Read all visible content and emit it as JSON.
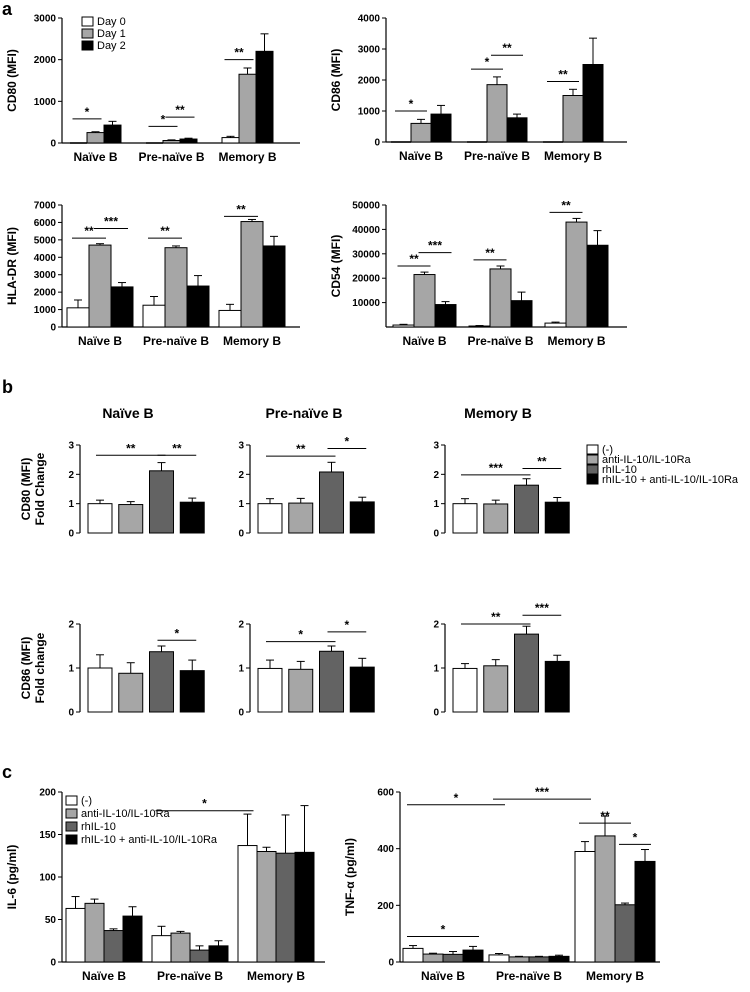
{
  "panels": [
    {
      "letter": "a"
    },
    {
      "letter": "b"
    },
    {
      "letter": "c"
    }
  ],
  "colors": {
    "white": "#ffffff",
    "lightgray": "#a6a6a6",
    "darkgray": "#636363",
    "black": "#000000"
  },
  "panel_a_legend": [
    "Day 0",
    "Day 1",
    "Day 2"
  ],
  "panel_b_legend": [
    "(-)",
    "anti-IL-10/IL-10Ra",
    "rhIL-10",
    "rhIL-10 + anti-IL-10/IL-10Ra"
  ],
  "panel_b_columns": [
    "Naïve B",
    "Pre-naïve B",
    "Memory B"
  ],
  "chart_data": [
    {
      "id": "a1",
      "type": "bar",
      "ylabel": "CD80 (MFI)",
      "ylim": [
        0,
        3000
      ],
      "yticks": [
        0,
        1000,
        2000,
        3000
      ],
      "categories": [
        "Naïve B",
        "Pre-naïve B",
        "Memory B"
      ],
      "series": [
        {
          "name": "Day 0",
          "values": [
            0,
            0,
            130
          ],
          "errors": [
            0,
            0,
            30
          ]
        },
        {
          "name": "Day 1",
          "values": [
            250,
            60,
            1650
          ],
          "errors": [
            20,
            15,
            150
          ]
        },
        {
          "name": "Day 2",
          "values": [
            430,
            95,
            2200
          ],
          "errors": [
            90,
            20,
            420
          ]
        }
      ],
      "significance": [
        {
          "label": "*",
          "cat": 0,
          "from": 0,
          "to": 1,
          "y": 580
        },
        {
          "label": "*",
          "cat": 1,
          "from": 0,
          "to": 1,
          "y": 400
        },
        {
          "label": "**",
          "cat": 1,
          "from": 1,
          "to": 2,
          "y": 620
        },
        {
          "label": "**",
          "cat": 2,
          "from": 0,
          "to": 1,
          "y": 2000
        }
      ]
    },
    {
      "id": "a2",
      "type": "bar",
      "ylabel": "CD86 (MFI)",
      "ylim": [
        0,
        4000
      ],
      "yticks": [
        0,
        1000,
        2000,
        3000,
        4000
      ],
      "categories": [
        "Naïve B",
        "Pre-naïve B",
        "Memory B"
      ],
      "series": [
        {
          "name": "Day 0",
          "values": [
            0,
            0,
            0
          ],
          "errors": [
            0,
            0,
            0
          ]
        },
        {
          "name": "Day 1",
          "values": [
            600,
            1850,
            1500
          ],
          "errors": [
            130,
            250,
            200
          ]
        },
        {
          "name": "Day 2",
          "values": [
            900,
            780,
            2500
          ],
          "errors": [
            280,
            120,
            850
          ]
        }
      ],
      "significance": [
        {
          "label": "*",
          "cat": 0,
          "from": 0,
          "to": 1,
          "y": 1000
        },
        {
          "label": "*",
          "cat": 1,
          "from": 0,
          "to": 1,
          "y": 2350
        },
        {
          "label": "**",
          "cat": 1,
          "from": 1,
          "to": 2,
          "y": 2800
        },
        {
          "label": "**",
          "cat": 2,
          "from": 0,
          "to": 1,
          "y": 1950
        }
      ]
    },
    {
      "id": "a3",
      "type": "bar",
      "ylabel": "HLA-DR (MFI)",
      "ylim": [
        0,
        7000
      ],
      "yticks": [
        0,
        1000,
        2000,
        3000,
        4000,
        5000,
        6000,
        7000
      ],
      "categories": [
        "Naïve B",
        "Pre-naïve B",
        "Memory B"
      ],
      "series": [
        {
          "name": "Day 0",
          "values": [
            1100,
            1250,
            950
          ],
          "errors": [
            450,
            500,
            350
          ]
        },
        {
          "name": "Day 1",
          "values": [
            4700,
            4550,
            6050
          ],
          "errors": [
            80,
            100,
            120
          ]
        },
        {
          "name": "Day 2",
          "values": [
            2300,
            2350,
            4650
          ],
          "errors": [
            250,
            600,
            550
          ]
        }
      ],
      "significance": [
        {
          "label": "**",
          "cat": 0,
          "from": 0,
          "to": 1,
          "y": 5100
        },
        {
          "label": "***",
          "cat": 0,
          "from": 1,
          "to": 2,
          "y": 5650
        },
        {
          "label": "**",
          "cat": 1,
          "from": 0,
          "to": 1,
          "y": 5100
        },
        {
          "label": "**",
          "cat": 2,
          "from": 0,
          "to": 1,
          "y": 6350
        }
      ]
    },
    {
      "id": "a4",
      "type": "bar",
      "ylabel": "CD54 (MFI)",
      "ylim": [
        0,
        50000
      ],
      "yticks": [
        10000,
        20000,
        30000,
        40000,
        50000
      ],
      "categories": [
        "Naïve  B",
        "Pre-naïve B",
        "Memory B"
      ],
      "series": [
        {
          "name": "Day 0",
          "values": [
            800,
            400,
            1600
          ],
          "errors": [
            300,
            200,
            400
          ]
        },
        {
          "name": "Day 1",
          "values": [
            21500,
            23800,
            43000
          ],
          "errors": [
            1000,
            1200,
            1500
          ]
        },
        {
          "name": "Day 2",
          "values": [
            9200,
            10800,
            33500
          ],
          "errors": [
            1200,
            3500,
            6000
          ]
        }
      ],
      "significance": [
        {
          "label": "**",
          "cat": 0,
          "from": 0,
          "to": 1,
          "y": 25000
        },
        {
          "label": "***",
          "cat": 0,
          "from": 1,
          "to": 2,
          "y": 30500
        },
        {
          "label": "**",
          "cat": 1,
          "from": 0,
          "to": 1,
          "y": 27500
        },
        {
          "label": "**",
          "cat": 2,
          "from": 0,
          "to": 1,
          "y": 47000
        }
      ]
    },
    {
      "id": "b1",
      "type": "bar",
      "ylabel": [
        "CD80 (MFI)",
        "Fold Change"
      ],
      "ylim": [
        0,
        3
      ],
      "yticks": [
        0,
        1,
        2,
        3
      ],
      "values": [
        1.0,
        0.97,
        2.12,
        1.05
      ],
      "errors": [
        0.12,
        0.1,
        0.28,
        0.14
      ],
      "significance": [
        {
          "label": "**",
          "from": 0,
          "to": 2,
          "y": 2.65
        },
        {
          "label": "**",
          "from": 2,
          "to": 3,
          "y": 2.65
        }
      ]
    },
    {
      "id": "b2",
      "type": "bar",
      "ylabel": "",
      "ylim": [
        0,
        3
      ],
      "yticks": [
        0,
        1,
        2,
        3
      ],
      "values": [
        1.0,
        1.02,
        2.08,
        1.06
      ],
      "errors": [
        0.17,
        0.16,
        0.33,
        0.16
      ],
      "significance": [
        {
          "label": "**",
          "from": 0,
          "to": 2,
          "y": 2.62
        },
        {
          "label": "*",
          "from": 2,
          "to": 3,
          "y": 2.88
        }
      ]
    },
    {
      "id": "b3",
      "type": "bar",
      "ylabel": "",
      "ylim": [
        0,
        3
      ],
      "yticks": [
        0,
        1,
        2,
        3
      ],
      "values": [
        1.0,
        0.99,
        1.63,
        1.05
      ],
      "errors": [
        0.17,
        0.13,
        0.22,
        0.16
      ],
      "significance": [
        {
          "label": "***",
          "from": 0,
          "to": 2,
          "y": 1.98
        },
        {
          "label": "**",
          "from": 2,
          "to": 3,
          "y": 2.2
        }
      ]
    },
    {
      "id": "b4",
      "type": "bar",
      "ylabel": [
        "CD86 (MFI)",
        "Fold change"
      ],
      "ylim": [
        0,
        2
      ],
      "yticks": [
        0,
        1,
        2
      ],
      "values": [
        1.0,
        0.88,
        1.37,
        0.94
      ],
      "errors": [
        0.3,
        0.24,
        0.13,
        0.24
      ],
      "significance": [
        {
          "label": "*",
          "from": 2,
          "to": 3,
          "y": 1.63
        }
      ]
    },
    {
      "id": "b5",
      "type": "bar",
      "ylabel": "",
      "ylim": [
        0,
        2
      ],
      "yticks": [
        0,
        1,
        2
      ],
      "values": [
        0.99,
        0.97,
        1.38,
        1.02
      ],
      "errors": [
        0.19,
        0.18,
        0.12,
        0.2
      ],
      "significance": [
        {
          "label": "*",
          "from": 0,
          "to": 2,
          "y": 1.6
        },
        {
          "label": "*",
          "from": 2,
          "to": 3,
          "y": 1.82
        }
      ]
    },
    {
      "id": "b6",
      "type": "bar",
      "ylabel": "",
      "ylim": [
        0,
        2
      ],
      "yticks": [
        0,
        1,
        2
      ],
      "values": [
        0.99,
        1.05,
        1.77,
        1.15
      ],
      "errors": [
        0.11,
        0.14,
        0.18,
        0.14
      ],
      "significance": [
        {
          "label": "**",
          "from": 0,
          "to": 2,
          "y": 2.0
        },
        {
          "label": "***",
          "from": 2,
          "to": 3,
          "y": 2.2
        }
      ]
    },
    {
      "id": "c1",
      "type": "bar",
      "ylabel": "IL-6 (pg/ml)",
      "ylim": [
        0,
        200
      ],
      "yticks": [
        0,
        50,
        100,
        150,
        200
      ],
      "categories": [
        "Naïve B",
        "Pre-naïve B",
        "Memory B"
      ],
      "series": [
        {
          "name": "(-)",
          "values": [
            63,
            31,
            137
          ],
          "errors": [
            14,
            11,
            37
          ]
        },
        {
          "name": "anti-IL-10/IL-10Ra",
          "values": [
            69,
            34,
            130
          ],
          "errors": [
            5,
            2,
            5
          ]
        },
        {
          "name": "rhIL-10",
          "values": [
            37,
            14,
            128
          ],
          "errors": [
            2,
            5,
            45
          ]
        },
        {
          "name": "rhIL-10 + anti-IL-10/IL-10Ra",
          "values": [
            54,
            19,
            129
          ],
          "errors": [
            11,
            6,
            55
          ]
        }
      ],
      "significance": [
        {
          "label": "*",
          "from": [
            1,
            0
          ],
          "to": [
            2,
            0
          ],
          "y": 178
        }
      ]
    },
    {
      "id": "c2",
      "type": "bar",
      "ylabel": "TNF-α (pg/ml)",
      "ylim": [
        0,
        600
      ],
      "yticks": [
        0,
        200,
        400,
        600
      ],
      "categories": [
        "Naïve B",
        "Pre-naïve B",
        "Memory B"
      ],
      "series": [
        {
          "name": "(-)",
          "values": [
            48,
            25,
            390
          ],
          "errors": [
            10,
            5,
            35
          ]
        },
        {
          "name": "anti-IL-10/IL-10Ra",
          "values": [
            28,
            18,
            445
          ],
          "errors": [
            3,
            2,
            70
          ]
        },
        {
          "name": "rhIL-10",
          "values": [
            27,
            18,
            202
          ],
          "errors": [
            10,
            2,
            6
          ]
        },
        {
          "name": "rhIL-10 + anti-IL-10/IL-10Ra",
          "values": [
            42,
            20,
            355
          ],
          "errors": [
            13,
            4,
            42
          ]
        }
      ],
      "significance": [
        {
          "label": "*",
          "from": [
            0,
            0
          ],
          "to": [
            0,
            3
          ],
          "y": 90
        },
        {
          "label": "*",
          "from": [
            0,
            0
          ],
          "to": [
            1,
            0
          ],
          "y": 555
        },
        {
          "label": "***",
          "from": [
            1,
            0
          ],
          "to": [
            2,
            0
          ],
          "y": 575
        },
        {
          "label": "**",
          "from": [
            2,
            0
          ],
          "to": [
            2,
            2
          ],
          "y": 490
        },
        {
          "label": "*",
          "from": [
            2,
            2
          ],
          "to": [
            2,
            3
          ],
          "y": 415
        }
      ]
    }
  ]
}
